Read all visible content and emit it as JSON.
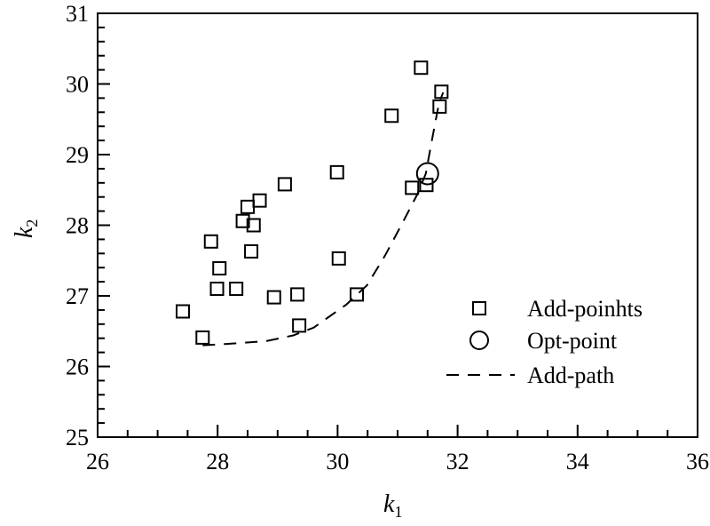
{
  "chart_data": {
    "type": "scatter",
    "title": "",
    "xlabel": "k",
    "xlabel_sub": "1",
    "ylabel": "k",
    "ylabel_sub": "2",
    "xlim": [
      26,
      36
    ],
    "ylim": [
      25,
      31
    ],
    "xticks": [
      "26",
      "28",
      "30",
      "32",
      "34",
      "36"
    ],
    "yticks": [
      "25",
      "26",
      "27",
      "28",
      "29",
      "30",
      "31"
    ],
    "grid": false,
    "legend_position": "bottom-right",
    "series": [
      {
        "name": "Add-poinhts",
        "marker": "square",
        "points": [
          [
            27.42,
            26.78
          ],
          [
            27.75,
            26.41
          ],
          [
            27.89,
            27.77
          ],
          [
            28.03,
            27.39
          ],
          [
            27.99,
            27.1
          ],
          [
            28.31,
            27.1
          ],
          [
            28.42,
            28.06
          ],
          [
            28.5,
            28.26
          ],
          [
            28.7,
            28.35
          ],
          [
            28.6,
            28.0
          ],
          [
            28.56,
            27.63
          ],
          [
            29.12,
            28.58
          ],
          [
            28.94,
            26.98
          ],
          [
            29.33,
            27.02
          ],
          [
            29.36,
            26.58
          ],
          [
            29.99,
            28.75
          ],
          [
            30.02,
            27.53
          ],
          [
            30.32,
            27.02
          ],
          [
            31.24,
            28.53
          ],
          [
            31.48,
            28.57
          ],
          [
            31.39,
            30.23
          ],
          [
            31.73,
            29.89
          ],
          [
            31.7,
            29.68
          ],
          [
            30.9,
            29.55
          ]
        ]
      },
      {
        "name": "Opt-point",
        "marker": "circle",
        "points": [
          [
            31.5,
            28.73
          ]
        ]
      },
      {
        "name": "Add-path",
        "marker": "dashed-line",
        "points": [
          [
            27.75,
            26.3
          ],
          [
            28.17,
            26.32
          ],
          [
            28.81,
            26.36
          ],
          [
            29.26,
            26.44
          ],
          [
            29.6,
            26.55
          ],
          [
            30.15,
            26.88
          ],
          [
            30.49,
            27.15
          ],
          [
            30.79,
            27.57
          ],
          [
            31.08,
            28.03
          ],
          [
            31.33,
            28.44
          ],
          [
            31.47,
            28.73
          ],
          [
            31.56,
            29.15
          ],
          [
            31.69,
            29.73
          ],
          [
            31.76,
            29.88
          ]
        ]
      }
    ]
  }
}
